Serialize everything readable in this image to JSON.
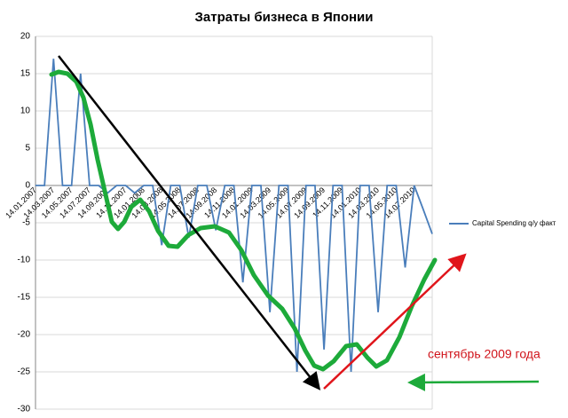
{
  "chart_data": {
    "type": "line",
    "title": "Затраты бизнеса в Японии",
    "categories": [
      "14.01.2007",
      null,
      "14.03.2007",
      null,
      "14.05.2007",
      null,
      "14.07.2007",
      null,
      "14.09.2007",
      null,
      "14.11.2007",
      null,
      "14.01.2008",
      null,
      "14.03.2008",
      null,
      "14.05.2008",
      null,
      "14.07.2008",
      null,
      "14.09.2008",
      null,
      "14.11.2008",
      null,
      "14.01.2009",
      null,
      "14.03.2009",
      null,
      "14.05.2009",
      null,
      "14.07.2009",
      null,
      "14.09.2009",
      null,
      "14.11.2009",
      null,
      "14.01.2010",
      null,
      "14.03.2010",
      null,
      "14.05.2010",
      null,
      "14.07.2010",
      null,
      null
    ],
    "series": [
      {
        "name": "Capital Spending q/y факт",
        "color": "#4a7ebb",
        "values": [
          0,
          0,
          17,
          0,
          0,
          15,
          0,
          0,
          -1,
          0,
          0,
          -1,
          0,
          0,
          -8,
          0,
          0,
          -7,
          0,
          0,
          -6,
          0,
          0,
          -13,
          0,
          0,
          -17,
          0,
          0,
          -25,
          0,
          0,
          -22,
          0,
          0,
          -25,
          0,
          0,
          -17,
          0,
          0,
          -11,
          0,
          -3.2,
          -6.5
        ]
      }
    ],
    "ylim": [
      -30,
      20
    ],
    "yticks": [
      -30,
      -25,
      -20,
      -15,
      -10,
      -5,
      0,
      5,
      10,
      15,
      20
    ],
    "grid": true,
    "annotation": "сентябрь 2009 года"
  }
}
